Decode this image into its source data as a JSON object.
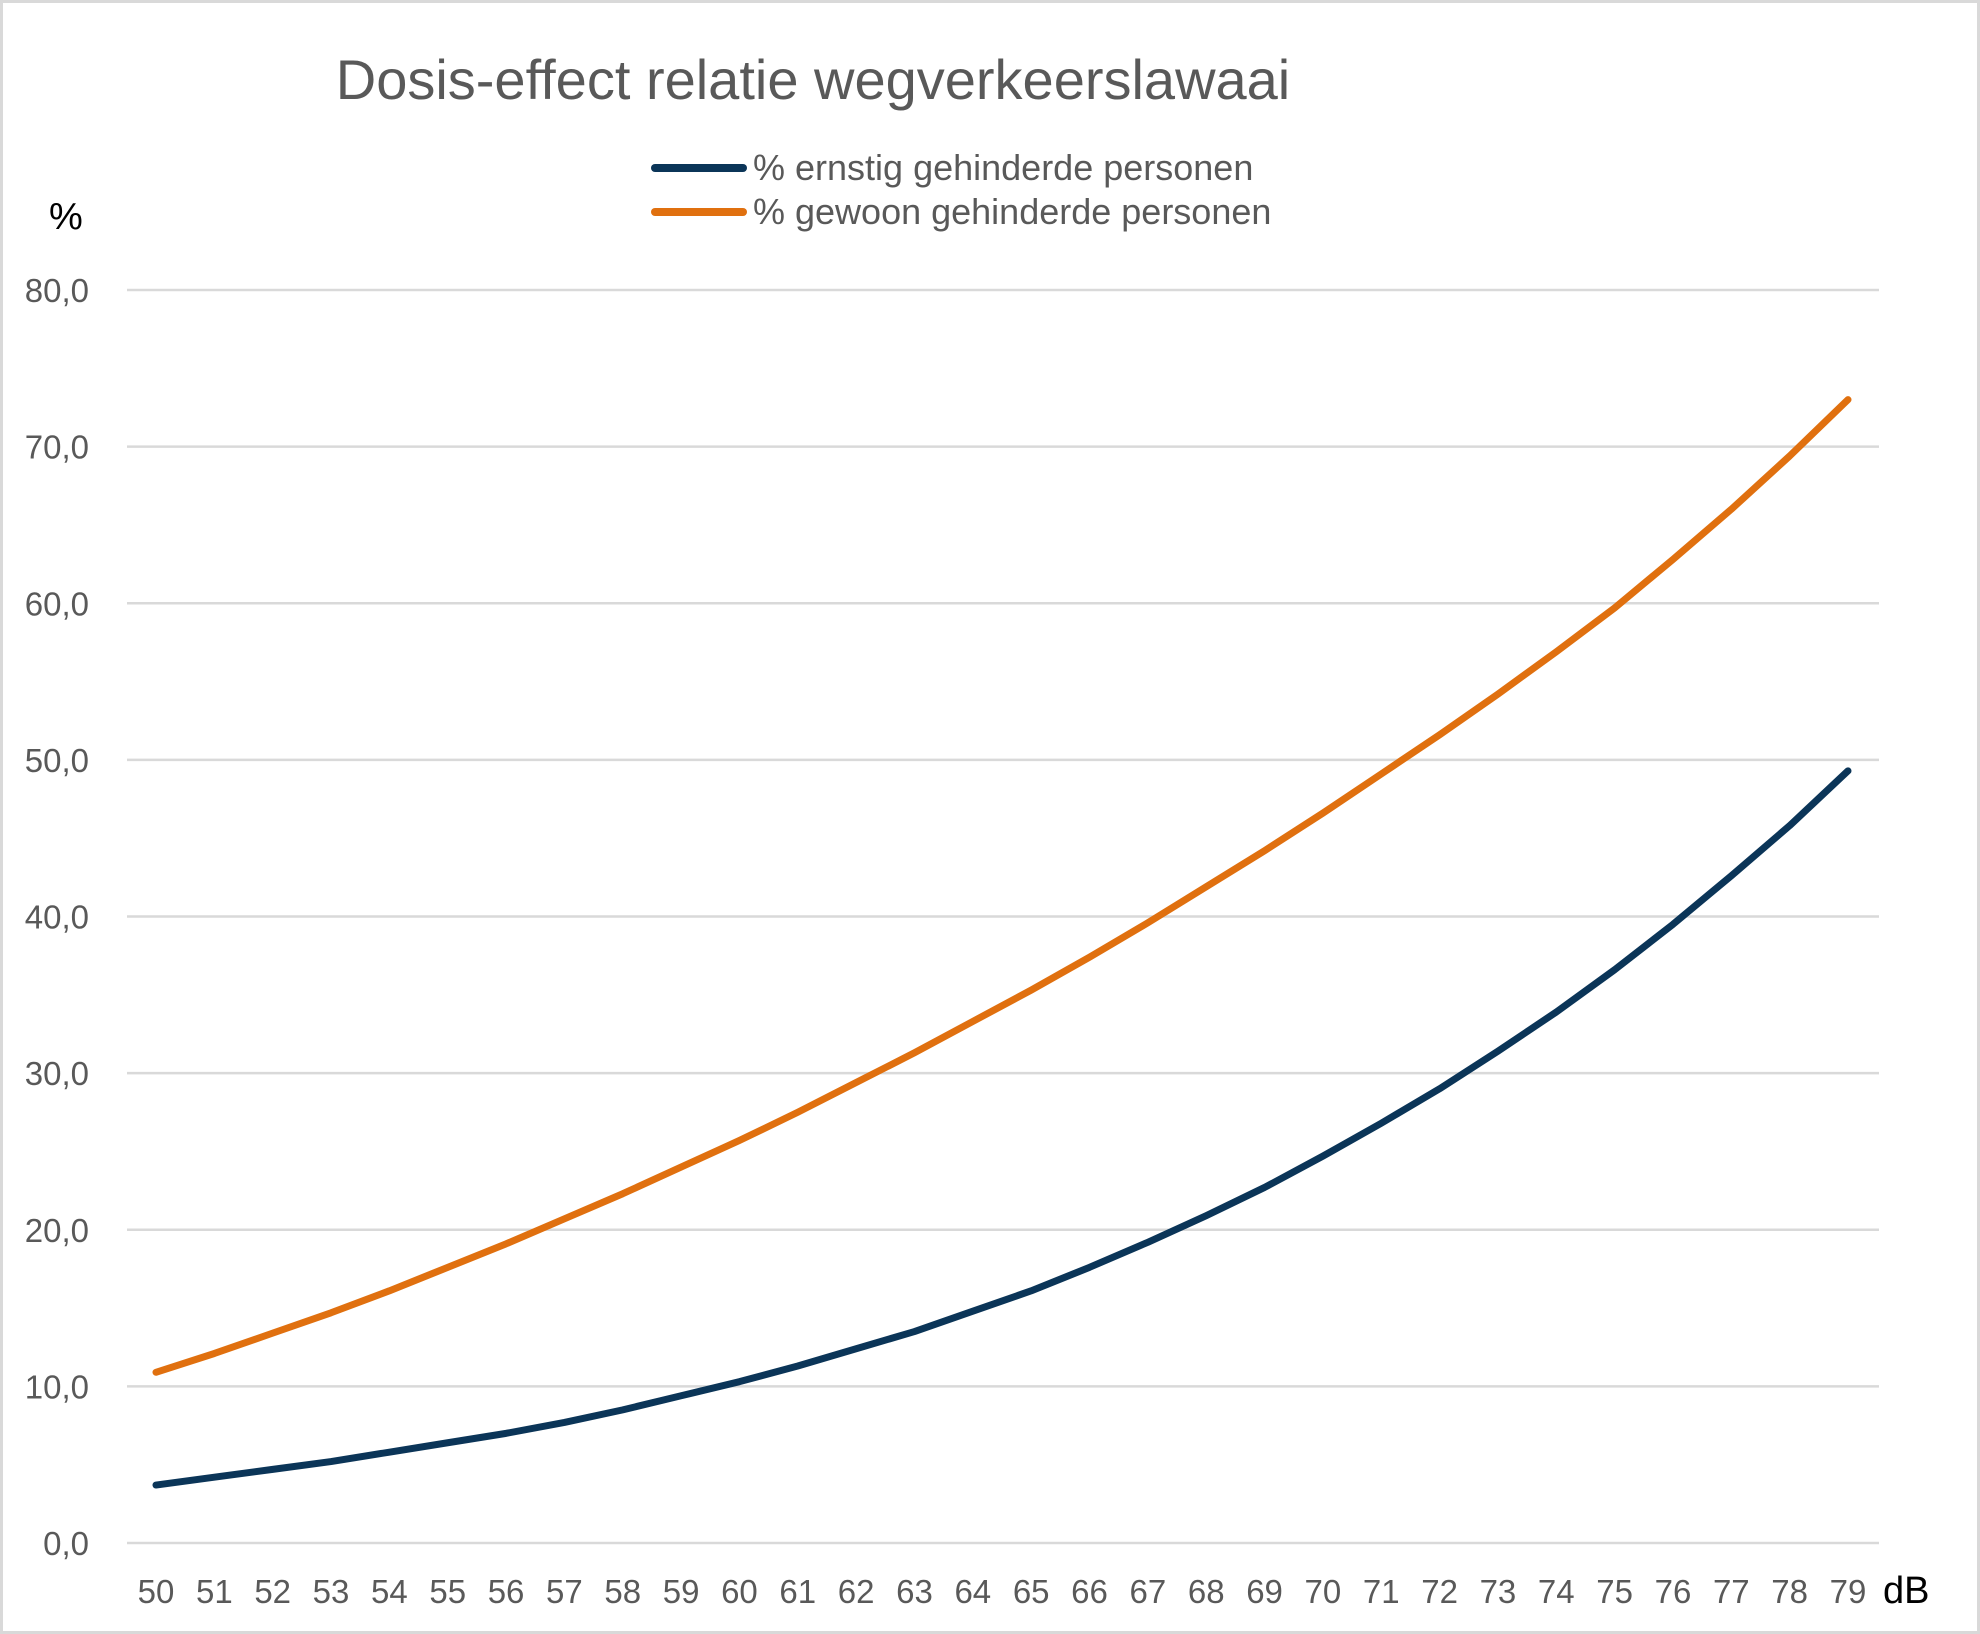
{
  "chart_data": {
    "type": "line",
    "title": "Dosis-effect relatie wegverkeerslawaai",
    "ylabel": "%",
    "xlabel": "dB",
    "ylim": [
      0,
      80
    ],
    "yticks": [
      "0,0",
      "10,0",
      "20,0",
      "30,0",
      "40,0",
      "50,0",
      "60,0",
      "70,0",
      "80,0"
    ],
    "grid": true,
    "legend_position": "top",
    "categories": [
      "50",
      "51",
      "52",
      "53",
      "54",
      "55",
      "56",
      "57",
      "58",
      "59",
      "60",
      "61",
      "62",
      "63",
      "64",
      "65",
      "66",
      "67",
      "68",
      "69",
      "70",
      "71",
      "72",
      "73",
      "74",
      "75",
      "76",
      "77",
      "78",
      "79"
    ],
    "series": [
      {
        "name": "% ernstig gehinderde personen",
        "color": "#0b3558",
        "values": [
          3.7,
          4.2,
          4.7,
          5.2,
          5.8,
          6.4,
          7.0,
          7.7,
          8.5,
          9.4,
          10.3,
          11.3,
          12.4,
          13.5,
          14.8,
          16.1,
          17.6,
          19.2,
          20.9,
          22.7,
          24.7,
          26.8,
          29.0,
          31.4,
          33.9,
          36.6,
          39.5,
          42.6,
          45.8,
          49.3
        ]
      },
      {
        "name": "% gewoon gehinderde personen",
        "color": "#e0700f",
        "values": [
          10.9,
          12.1,
          13.4,
          14.7,
          16.1,
          17.6,
          19.1,
          20.7,
          22.3,
          24.0,
          25.7,
          27.5,
          29.4,
          31.3,
          33.3,
          35.3,
          37.4,
          39.6,
          41.9,
          44.2,
          46.6,
          49.1,
          51.6,
          54.2,
          56.9,
          59.7,
          62.8,
          66.0,
          69.4,
          73.0
        ]
      }
    ]
  }
}
